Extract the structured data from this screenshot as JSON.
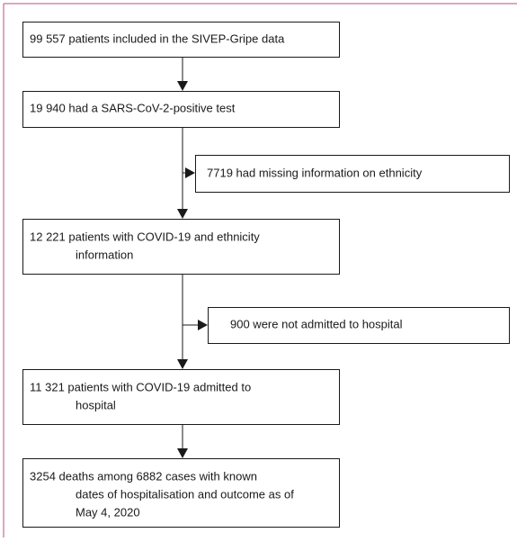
{
  "nodes": [
    {
      "lines": [
        "99 557 patients included in the SIVEP-Gripe data"
      ]
    },
    {
      "lines": [
        "19 940 had a SARS-CoV-2-positive test"
      ]
    },
    {
      "lines": [
        "7719 had missing information on ethnicity"
      ]
    },
    {
      "lines": [
        "12 221 patients with COVID-19 and ethnicity",
        "information"
      ]
    },
    {
      "lines": [
        "900 were not admitted to hospital"
      ]
    },
    {
      "lines": [
        "11 321 patients with COVID-19 admitted to",
        "hospital"
      ]
    },
    {
      "lines": [
        "3254 deaths among 6882 cases with known",
        "dates of hospitalisation and outcome as of",
        "May 4, 2020"
      ]
    }
  ]
}
